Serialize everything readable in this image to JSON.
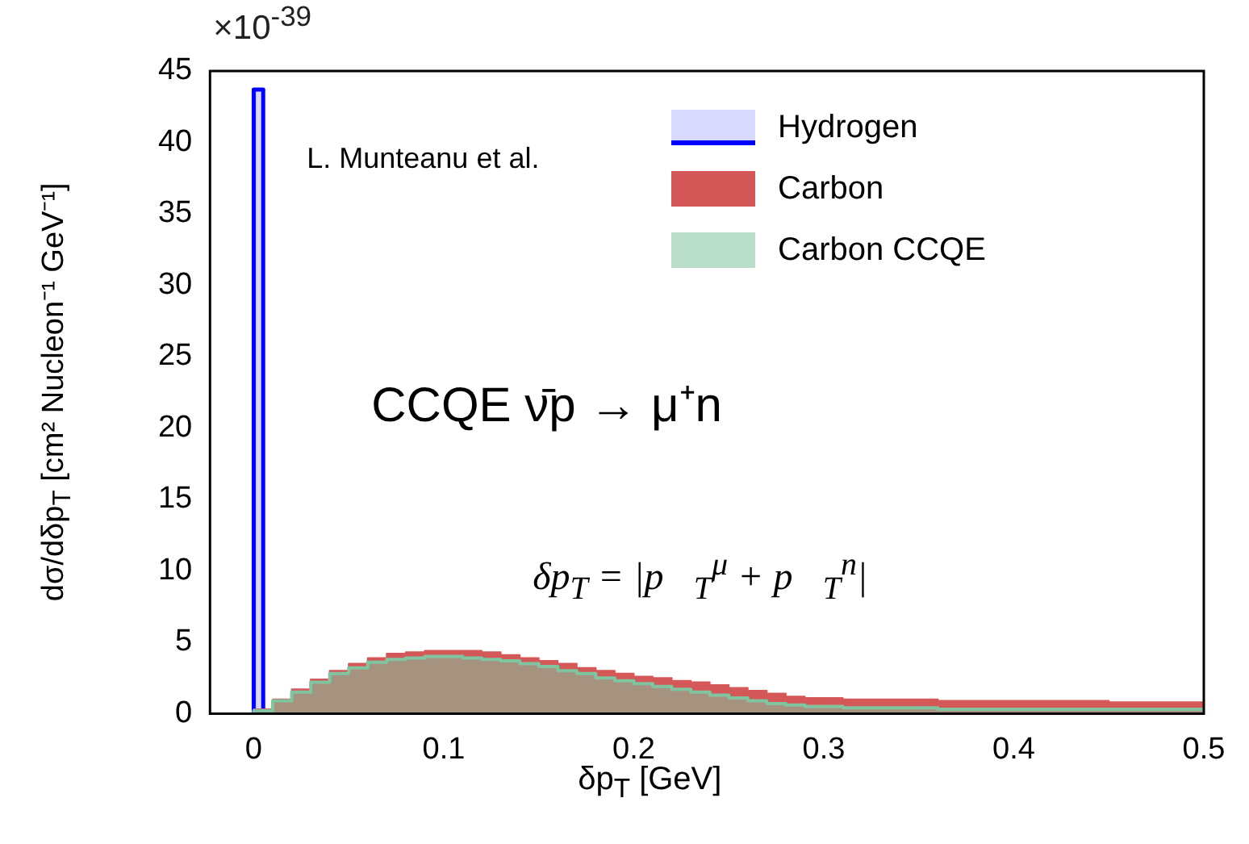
{
  "chart_data": {
    "type": "histogram",
    "xlabel": "δp$_{T}$ [GeV]",
    "ylabel": "dσ/dδp$_{T}$ [cm² Nucleon⁻¹ GeV⁻¹]",
    "annotations": [
      "×10$^{-39}$",
      "L. Munteanu et al.",
      "CCQE  ν̄p → μ⁺n",
      "δp$_{T}$ = |p⃗$_{T}$$^{μ}$ + p⃗$_{T}$$^{n}$|"
    ],
    "xlim": [
      -0.023,
      0.5
    ],
    "xticks": [
      0,
      0.1,
      0.2,
      0.3,
      0.4,
      0.5
    ],
    "ylim": [
      0,
      45
    ],
    "yticks": [
      0,
      5,
      10,
      15,
      20,
      25,
      30,
      35,
      40,
      45
    ],
    "grid": false,
    "legend": "top right",
    "bins": [
      0,
      0.01,
      0.02,
      0.03,
      0.04,
      0.05,
      0.06,
      0.07,
      0.08,
      0.09,
      0.1,
      0.11,
      0.12,
      0.13,
      0.14,
      0.15,
      0.16,
      0.17,
      0.18,
      0.19,
      0.2,
      0.21,
      0.22,
      0.23,
      0.24,
      0.25,
      0.26,
      0.27,
      0.28,
      0.29,
      0.3,
      0.31,
      0.32,
      0.33,
      0.34,
      0.35,
      0.36,
      0.37,
      0.38,
      0.39,
      0.4,
      0.41,
      0.42,
      0.43,
      0.44,
      0.45,
      0.46,
      0.47,
      0.48,
      0.49,
      0.5
    ],
    "series": [
      {
        "name": "Hydrogen",
        "color": "#0000ff",
        "bins": [
          0,
          0.005
        ],
        "values": [
          43.7
        ]
      },
      {
        "name": "Carbon",
        "color": "#d45858",
        "values": [
          0.3,
          1.0,
          1.7,
          2.4,
          3.0,
          3.5,
          3.9,
          4.2,
          4.3,
          4.4,
          4.4,
          4.4,
          4.3,
          4.1,
          3.9,
          3.7,
          3.5,
          3.2,
          3.0,
          2.8,
          2.6,
          2.5,
          2.3,
          2.2,
          2.0,
          1.8,
          1.6,
          1.4,
          1.2,
          1.1,
          1.1,
          1.0,
          1.0,
          1.0,
          1.0,
          1.0,
          0.9,
          0.9,
          0.9,
          0.9,
          0.9,
          0.9,
          0.9,
          0.9,
          0.9,
          0.8,
          0.8,
          0.8,
          0.8,
          0.8
        ]
      },
      {
        "name": "Carbon CCQE",
        "color": "#80c4a0",
        "values": [
          0.2,
          0.9,
          1.5,
          2.2,
          2.8,
          3.2,
          3.6,
          3.8,
          3.9,
          4.0,
          4.0,
          3.9,
          3.8,
          3.7,
          3.5,
          3.3,
          3.0,
          2.8,
          2.5,
          2.3,
          2.1,
          1.9,
          1.7,
          1.5,
          1.3,
          1.1,
          0.9,
          0.7,
          0.6,
          0.5,
          0.5,
          0.4,
          0.4,
          0.4,
          0.4,
          0.4,
          0.3,
          0.3,
          0.3,
          0.3,
          0.3,
          0.3,
          0.3,
          0.3,
          0.3,
          0.3,
          0.3,
          0.3,
          0.3,
          0.3
        ]
      }
    ]
  }
}
